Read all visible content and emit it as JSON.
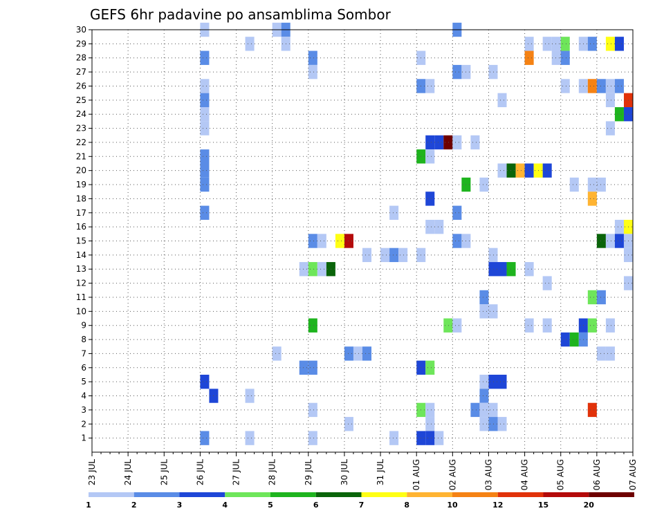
{
  "chart_data": {
    "type": "heatmap",
    "title": "GEFS 6hr padavine po ansamblima Sombor",
    "x_start": "2025-07-23",
    "x_days": 15,
    "x_steps_per_day": 4,
    "x_labels": [
      "23 JUL",
      "24 JUL",
      "25 JUL",
      "26 JUL",
      "27 JUL",
      "28 JUL",
      "29 JUL",
      "30 JUL",
      "31 JUL",
      "01 AUG",
      "02 AUG",
      "03 AUG",
      "04 AUG",
      "05 AUG",
      "06 AUG",
      "07 AUG"
    ],
    "y_labels": [
      1,
      2,
      3,
      4,
      5,
      6,
      7,
      8,
      9,
      10,
      11,
      12,
      13,
      14,
      15,
      16,
      17,
      18,
      19,
      20,
      21,
      22,
      23,
      24,
      25,
      26,
      27,
      28,
      29,
      30
    ],
    "y_range": [
      0,
      30
    ],
    "grid": true,
    "colorbar": {
      "levels": [
        1,
        2,
        3,
        4,
        5,
        6,
        7,
        8,
        10,
        12,
        15,
        20
      ],
      "level_labels": [
        "1",
        "2",
        "3",
        "4",
        "5",
        "6",
        "7",
        "8",
        "10",
        "12",
        "15",
        "20"
      ],
      "colors": [
        "#b4c8f5",
        "#5a8ce6",
        "#1e46d7",
        "#6ee65a",
        "#1eb41e",
        "#0a640a",
        "#ffff14",
        "#ffb432",
        "#f58214",
        "#e1320a",
        "#b40a0a",
        "#6e0000"
      ]
    },
    "cells": [
      [
        3.0,
        30,
        1
      ],
      [
        5.0,
        30,
        1
      ],
      [
        5.25,
        30,
        2
      ],
      [
        10.0,
        30,
        2
      ],
      [
        4.25,
        29,
        1
      ],
      [
        5.25,
        29,
        1
      ],
      [
        12.0,
        29,
        1
      ],
      [
        12.5,
        29,
        1
      ],
      [
        12.75,
        29,
        1
      ],
      [
        13.0,
        29,
        4
      ],
      [
        13.5,
        29,
        1
      ],
      [
        13.75,
        29,
        2
      ],
      [
        14.25,
        29,
        7
      ],
      [
        14.5,
        29,
        3
      ],
      [
        3.0,
        28,
        2
      ],
      [
        6.0,
        28,
        2
      ],
      [
        9.0,
        28,
        1
      ],
      [
        12.0,
        28,
        9
      ],
      [
        12.75,
        28,
        1
      ],
      [
        13.0,
        28,
        2
      ],
      [
        6.0,
        27,
        1
      ],
      [
        10.0,
        27,
        2
      ],
      [
        10.25,
        27,
        1
      ],
      [
        11.0,
        27,
        1
      ],
      [
        3.0,
        26,
        1
      ],
      [
        9.0,
        26,
        2
      ],
      [
        9.25,
        26,
        1
      ],
      [
        13.0,
        26,
        1
      ],
      [
        13.5,
        26,
        1
      ],
      [
        13.75,
        26,
        9
      ],
      [
        14.0,
        26,
        2
      ],
      [
        14.25,
        26,
        1
      ],
      [
        14.5,
        26,
        2
      ],
      [
        3.0,
        25,
        2
      ],
      [
        11.25,
        25,
        1
      ],
      [
        14.25,
        25,
        1
      ],
      [
        14.75,
        25,
        10
      ],
      [
        3.0,
        24,
        1
      ],
      [
        14.5,
        24,
        5
      ],
      [
        14.75,
        24,
        3
      ],
      [
        3.0,
        23,
        1
      ],
      [
        14.25,
        23,
        1
      ],
      [
        9.25,
        22,
        3
      ],
      [
        9.5,
        22,
        3
      ],
      [
        9.75,
        22,
        12
      ],
      [
        10.0,
        22,
        1
      ],
      [
        10.5,
        22,
        1
      ],
      [
        3.0,
        21,
        2
      ],
      [
        9.0,
        21,
        5
      ],
      [
        9.25,
        21,
        1
      ],
      [
        3.0,
        20,
        2
      ],
      [
        11.25,
        20,
        1
      ],
      [
        11.5,
        20,
        6
      ],
      [
        11.75,
        20,
        8
      ],
      [
        12.0,
        20,
        3
      ],
      [
        12.25,
        20,
        7
      ],
      [
        12.5,
        20,
        3
      ],
      [
        3.0,
        19,
        2
      ],
      [
        10.25,
        19,
        5
      ],
      [
        10.75,
        19,
        1
      ],
      [
        13.25,
        19,
        1
      ],
      [
        13.75,
        19,
        1
      ],
      [
        14.0,
        19,
        1
      ],
      [
        9.25,
        18,
        3
      ],
      [
        13.75,
        18,
        8
      ],
      [
        3.0,
        17,
        2
      ],
      [
        8.25,
        17,
        1
      ],
      [
        10.0,
        17,
        2
      ],
      [
        9.25,
        16,
        1
      ],
      [
        9.5,
        16,
        1
      ],
      [
        14.5,
        16,
        1
      ],
      [
        14.75,
        16,
        7
      ],
      [
        6.0,
        15,
        2
      ],
      [
        6.25,
        15,
        1
      ],
      [
        6.75,
        15,
        7
      ],
      [
        7.0,
        15,
        11
      ],
      [
        10.0,
        15,
        2
      ],
      [
        10.25,
        15,
        1
      ],
      [
        14.0,
        15,
        6
      ],
      [
        14.25,
        15,
        1
      ],
      [
        14.5,
        15,
        3
      ],
      [
        14.75,
        15,
        1
      ],
      [
        7.5,
        14,
        1
      ],
      [
        8.0,
        14,
        1
      ],
      [
        8.25,
        14,
        2
      ],
      [
        8.5,
        14,
        1
      ],
      [
        9.0,
        14,
        1
      ],
      [
        11.0,
        14,
        1
      ],
      [
        14.75,
        14,
        1
      ],
      [
        5.75,
        13,
        1
      ],
      [
        6.0,
        13,
        4
      ],
      [
        6.25,
        13,
        1
      ],
      [
        6.5,
        13,
        6
      ],
      [
        11.0,
        13,
        3
      ],
      [
        11.25,
        13,
        3
      ],
      [
        11.5,
        13,
        5
      ],
      [
        12.0,
        13,
        1
      ],
      [
        12.5,
        12,
        1
      ],
      [
        14.75,
        12,
        1
      ],
      [
        10.75,
        11,
        2
      ],
      [
        13.75,
        11,
        4
      ],
      [
        14.0,
        11,
        2
      ],
      [
        10.75,
        10,
        1
      ],
      [
        11.0,
        10,
        1
      ],
      [
        6.0,
        9,
        5
      ],
      [
        9.75,
        9,
        4
      ],
      [
        10.0,
        9,
        1
      ],
      [
        12.0,
        9,
        1
      ],
      [
        12.5,
        9,
        1
      ],
      [
        13.5,
        9,
        3
      ],
      [
        13.75,
        9,
        4
      ],
      [
        14.25,
        9,
        1
      ],
      [
        13.0,
        8,
        3
      ],
      [
        13.25,
        8,
        5
      ],
      [
        13.5,
        8,
        2
      ],
      [
        5.0,
        7,
        1
      ],
      [
        7.0,
        7,
        2
      ],
      [
        7.25,
        7,
        1
      ],
      [
        7.5,
        7,
        2
      ],
      [
        14.0,
        7,
        1
      ],
      [
        14.25,
        7,
        1
      ],
      [
        5.75,
        6,
        2
      ],
      [
        6.0,
        6,
        2
      ],
      [
        9.0,
        6,
        3
      ],
      [
        9.25,
        6,
        4
      ],
      [
        3.0,
        5,
        3
      ],
      [
        10.75,
        5,
        1
      ],
      [
        11.0,
        5,
        3
      ],
      [
        11.25,
        5,
        3
      ],
      [
        3.25,
        4,
        3
      ],
      [
        4.25,
        4,
        1
      ],
      [
        10.75,
        4,
        2
      ],
      [
        6.0,
        3,
        1
      ],
      [
        9.0,
        3,
        4
      ],
      [
        9.25,
        3,
        1
      ],
      [
        10.5,
        3,
        2
      ],
      [
        10.75,
        3,
        1
      ],
      [
        11.0,
        3,
        1
      ],
      [
        13.75,
        3,
        10
      ],
      [
        7.0,
        2,
        1
      ],
      [
        9.25,
        2,
        1
      ],
      [
        10.75,
        2,
        1
      ],
      [
        11.0,
        2,
        2
      ],
      [
        11.25,
        2,
        1
      ],
      [
        3.0,
        1,
        2
      ],
      [
        4.25,
        1,
        1
      ],
      [
        6.0,
        1,
        1
      ],
      [
        8.25,
        1,
        1
      ],
      [
        9.0,
        1,
        3
      ],
      [
        9.25,
        1,
        3
      ],
      [
        9.5,
        1,
        1
      ]
    ]
  }
}
